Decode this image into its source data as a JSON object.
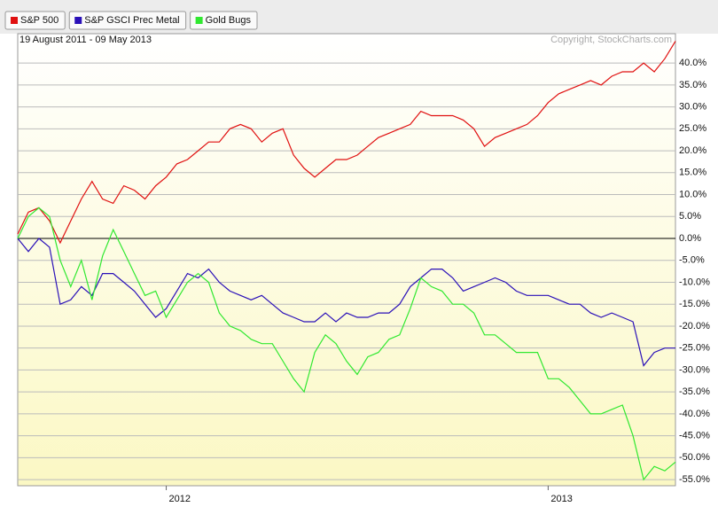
{
  "chart_data": {
    "type": "line",
    "subtitle": "19 August 2011 - 09 May 2013",
    "annotation": "Copyright, StockCharts.com",
    "categories": [
      null,
      null,
      null,
      null,
      null,
      null,
      null,
      null,
      null,
      null,
      null,
      null,
      null,
      null,
      "2012",
      null,
      null,
      null,
      null,
      null,
      null,
      null,
      null,
      null,
      null,
      null,
      null,
      null,
      null,
      null,
      null,
      null,
      null,
      null,
      null,
      null,
      null,
      null,
      null,
      null,
      null,
      null,
      null,
      null,
      null,
      null,
      null,
      null,
      null,
      null,
      "2013",
      null,
      null,
      null,
      null,
      null,
      null,
      null,
      null,
      null,
      null,
      null,
      null
    ],
    "series": [
      {
        "name": "S&P 500",
        "color": "#e01010",
        "values": [
          1,
          6,
          7,
          4,
          -1,
          4,
          9,
          13,
          9,
          8,
          12,
          11,
          9,
          12,
          14,
          17,
          18,
          20,
          22,
          22,
          25,
          26,
          25,
          22,
          24,
          25,
          19,
          16,
          14,
          16,
          18,
          18,
          19,
          21,
          23,
          24,
          25,
          26,
          29,
          28,
          28,
          28,
          27,
          25,
          21,
          23,
          24,
          25,
          26,
          28,
          31,
          33,
          34,
          35,
          36,
          35,
          37,
          38,
          38,
          40,
          38,
          41,
          45
        ]
      },
      {
        "name": "S&P GSCI Prec Metal",
        "color": "#2a10b8",
        "values": [
          0,
          -3,
          0,
          -2,
          -15,
          -14,
          -11,
          -13,
          -8,
          -8,
          -10,
          -12,
          -15,
          -18,
          -16,
          -12,
          -8,
          -9,
          -7,
          -10,
          -12,
          -13,
          -14,
          -13,
          -15,
          -17,
          -18,
          -19,
          -19,
          -17,
          -19,
          -17,
          -18,
          -18,
          -17,
          -17,
          -15,
          -11,
          -9,
          -7,
          -7,
          -9,
          -12,
          -11,
          -10,
          -9,
          -10,
          -12,
          -13,
          -13,
          -13,
          -14,
          -15,
          -15,
          -17,
          -18,
          -17,
          -18,
          -19,
          -29,
          -26,
          -25,
          -25
        ]
      },
      {
        "name": "Gold Bugs",
        "color": "#30e830",
        "values": [
          0,
          5,
          7,
          5,
          -5,
          -11,
          -5,
          -14,
          -4,
          2,
          -3,
          -8,
          -13,
          -12,
          -18,
          -14,
          -10,
          -8,
          -10,
          -17,
          -20,
          -21,
          -23,
          -24,
          -24,
          -28,
          -32,
          -35,
          -26,
          -22,
          -24,
          -28,
          -31,
          -27,
          -26,
          -23,
          -22,
          -16,
          -9,
          -11,
          -12,
          -15,
          -15,
          -17,
          -22,
          -22,
          -24,
          -26,
          -26,
          -26,
          -32,
          -32,
          -34,
          -37,
          -40,
          -40,
          -39,
          -38,
          -45,
          -55,
          -52,
          -53,
          -51
        ]
      }
    ],
    "ylim": [
      -56.4,
      46.7
    ],
    "yticks": [
      {
        "value": 40,
        "label": "40.0%"
      },
      {
        "value": 35,
        "label": "35.0%"
      },
      {
        "value": 30,
        "label": "30.0%"
      },
      {
        "value": 25,
        "label": "25.0%"
      },
      {
        "value": 20,
        "label": "20.0%"
      },
      {
        "value": 15,
        "label": "15.0%"
      },
      {
        "value": 10,
        "label": "10.0%"
      },
      {
        "value": 5,
        "label": "5.0%"
      },
      {
        "value": 0,
        "label": "0.0%"
      },
      {
        "value": -5,
        "label": "-5.0%"
      },
      {
        "value": -10,
        "label": "-10.0%"
      },
      {
        "value": -15,
        "label": "-15.0%"
      },
      {
        "value": -20,
        "label": "-20.0%"
      },
      {
        "value": -25,
        "label": "-25.0%"
      },
      {
        "value": -30,
        "label": "-30.0%"
      },
      {
        "value": -35,
        "label": "-35.0%"
      },
      {
        "value": -40,
        "label": "-40.0%"
      },
      {
        "value": -45,
        "label": "-45.0%"
      },
      {
        "value": -50,
        "label": "-50.0%"
      },
      {
        "value": -55,
        "label": "-55.0%"
      }
    ],
    "grid": true
  }
}
